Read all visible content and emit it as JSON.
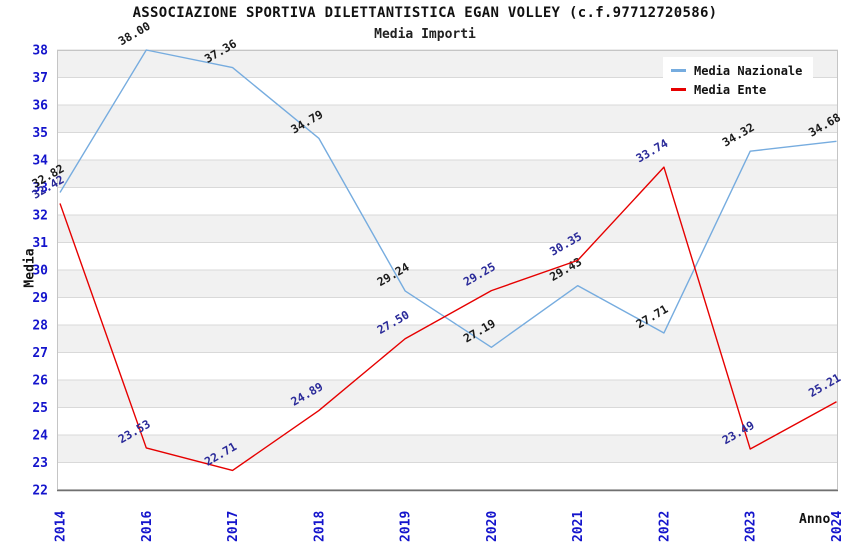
{
  "title": "ASSOCIAZIONE SPORTIVA DILETTANTISTICA EGAN VOLLEY (c.f.97712720586)",
  "subtitle": "Media Importi",
  "chart_data": {
    "type": "line",
    "title": "ASSOCIAZIONE SPORTIVA DILETTANTISTICA EGAN VOLLEY (c.f.97712720586)",
    "subtitle": "Media Importi",
    "xlabel": "Anno",
    "ylabel": "Media",
    "categories": [
      "2014",
      "2016",
      "2017",
      "2018",
      "2019",
      "2020",
      "2021",
      "2022",
      "2023",
      "2024"
    ],
    "series": [
      {
        "name": "Media Nazionale",
        "color": "#76ACDF",
        "label_color": "#1a1a1a",
        "values": [
          32.82,
          38.0,
          37.36,
          34.79,
          29.24,
          27.19,
          29.43,
          27.71,
          34.32,
          34.68
        ]
      },
      {
        "name": "Media Ente",
        "color": "#E60000",
        "label_color": "#2A2A99",
        "values": [
          32.42,
          23.53,
          22.71,
          24.89,
          27.5,
          29.25,
          30.35,
          33.74,
          23.49,
          25.21
        ]
      }
    ],
    "ylim": [
      22,
      38
    ],
    "ytick_step": 1,
    "grid": "horizontal-bands",
    "legend_position": "top-right",
    "value_label_decimals": 2
  },
  "colors": {
    "tick_label": "#1414CC",
    "band": "#F1F1F1",
    "grid_line": "#D9D9D9",
    "plot_border": "#C5C5C5",
    "axis_line": "#707070",
    "background": "#FFFFFF"
  }
}
